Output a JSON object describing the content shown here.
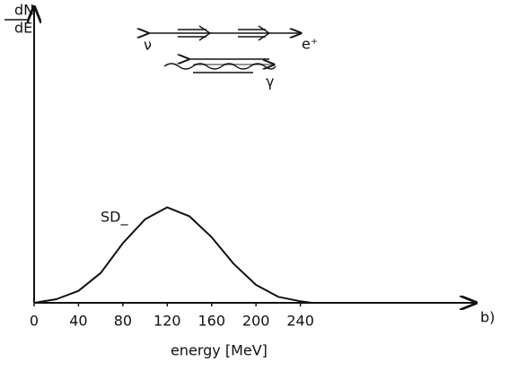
{
  "chart_data": {
    "type": "line",
    "y_label_top": "dN",
    "y_label_bottom": "dE",
    "x_label": "energy  [MeV]",
    "panel_label": "b)",
    "curve_label": "SD_",
    "diagram_labels": [
      "ν",
      "e⁺",
      "γ"
    ],
    "xlim": [
      0,
      390
    ],
    "xticks": [
      0,
      40,
      80,
      120,
      160,
      200,
      240
    ],
    "ylim": [
      0,
      100
    ],
    "x": [
      0,
      20,
      40,
      60,
      80,
      100,
      120,
      140,
      160,
      180,
      200,
      220,
      240,
      250
    ],
    "series": [
      {
        "name": "SD_",
        "color": "#111111",
        "values": [
          0,
          1.2,
          4,
          10,
          20,
          28,
          32,
          29,
          22,
          13,
          6,
          2,
          0.5,
          0
        ]
      }
    ]
  }
}
